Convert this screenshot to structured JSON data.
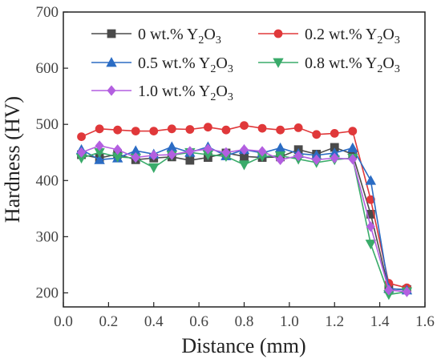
{
  "chart_data": {
    "type": "line",
    "xlabel": "Distance (mm)",
    "ylabel": "Hardness (HV)",
    "xlim": [
      0.0,
      1.6
    ],
    "ylim": [
      175,
      700
    ],
    "xticks": [
      0.0,
      0.2,
      0.4,
      0.6,
      0.8,
      1.0,
      1.2,
      1.4,
      1.6
    ],
    "yticks": [
      200,
      300,
      400,
      500,
      600,
      700
    ],
    "xtick_labels": [
      "0.0",
      "0.2",
      "0.4",
      "0.6",
      "0.8",
      "1.0",
      "1.2",
      "1.4",
      "1.6"
    ],
    "ytick_labels": [
      "200",
      "300",
      "400",
      "500",
      "600",
      "700"
    ],
    "grid": false,
    "legend_position": "top",
    "x": [
      0.08,
      0.16,
      0.24,
      0.32,
      0.4,
      0.48,
      0.56,
      0.64,
      0.72,
      0.8,
      0.88,
      0.96,
      1.04,
      1.12,
      1.2,
      1.28,
      1.36,
      1.44,
      1.52
    ],
    "series": [
      {
        "name": "0 wt.% Y2O3",
        "name_main": "0 wt.% Y",
        "name_sub1": "2",
        "name_mid": "O",
        "name_sub2": "3",
        "color": "#4a4a4a",
        "marker": "square",
        "values": [
          446,
          440,
          447,
          437,
          440,
          442,
          436,
          441,
          449,
          443,
          441,
          442,
          455,
          447,
          459,
          447,
          340,
          207,
          206
        ]
      },
      {
        "name": "0.2 wt.% Y2O3",
        "name_main": "0.2 wt.% Y",
        "name_sub1": "2",
        "name_mid": "O",
        "name_sub2": "3",
        "color": "#e0383a",
        "marker": "circle",
        "values": [
          478,
          492,
          490,
          488,
          488,
          492,
          491,
          495,
          490,
          498,
          493,
          490,
          494,
          482,
          484,
          488,
          366,
          217,
          209
        ]
      },
      {
        "name": "0.5 wt.% Y2O3",
        "name_main": "0.5 wt.% Y",
        "name_sub1": "2",
        "name_mid": "O",
        "name_sub2": "3",
        "color": "#2b6cc4",
        "marker": "triangle",
        "values": [
          455,
          437,
          440,
          453,
          447,
          460,
          450,
          460,
          444,
          455,
          449,
          458,
          448,
          445,
          449,
          458,
          400,
          208,
          205
        ]
      },
      {
        "name": "0.8 wt.% Y2O3",
        "name_main": "0.8 wt.% Y",
        "name_sub1": "2",
        "name_mid": "O",
        "name_sub2": "3",
        "color": "#3aab6a",
        "marker": "triangle-down",
        "values": [
          440,
          450,
          442,
          440,
          423,
          445,
          450,
          446,
          443,
          428,
          443,
          444,
          438,
          432,
          437,
          440,
          287,
          197,
          202
        ]
      },
      {
        "name": "1.0 wt.% Y2O3",
        "name_main": "1.0 wt.% Y",
        "name_sub1": "2",
        "name_mid": "O",
        "name_sub2": "3",
        "color": "#b35fe0",
        "marker": "diamond",
        "values": [
          450,
          462,
          455,
          441,
          445,
          446,
          452,
          456,
          450,
          455,
          452,
          437,
          444,
          437,
          440,
          438,
          318,
          205,
          202
        ]
      }
    ]
  }
}
